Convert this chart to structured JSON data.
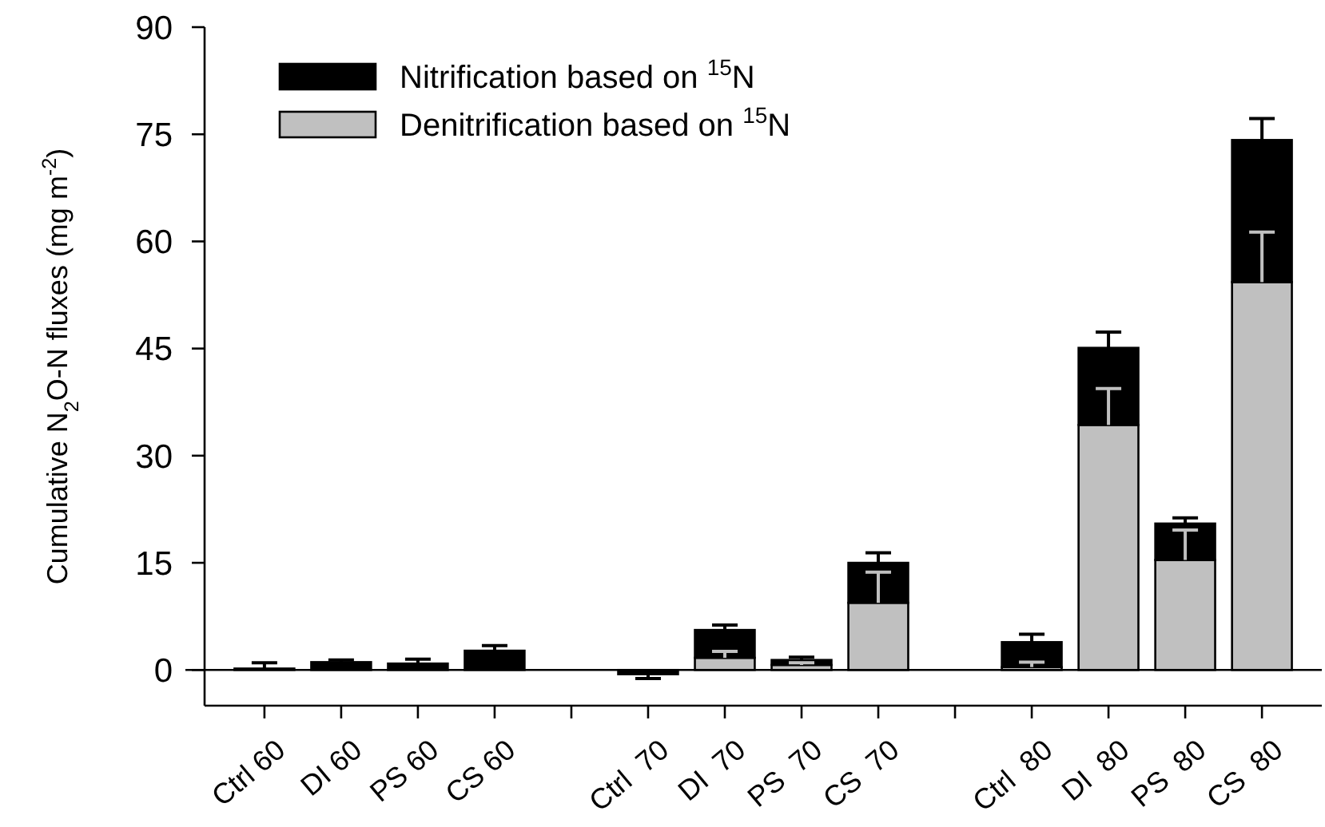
{
  "chart_data": {
    "type": "bar",
    "stacked": true,
    "ylabel": "Cumulative N$_{2}$O-N fluxes (mg m$^{-2}$)",
    "categories": [
      "Ctrl 60",
      "DI 60",
      "PS 60",
      "CS 60",
      null,
      "Ctrl  70",
      "DI  70",
      "PS  70",
      "CS  70",
      null,
      "Ctrl  80",
      "DI  80",
      "PS  80",
      "CS  80"
    ],
    "series": [
      {
        "name": "Denitrification based on $^{15}$N",
        "color": "#c0c0c0",
        "values": [
          null,
          null,
          null,
          null,
          null,
          null,
          1.7,
          0.7,
          9.4,
          null,
          0.4,
          34.3,
          15.4,
          54.3
        ],
        "errors": [
          null,
          null,
          null,
          null,
          null,
          null,
          0.9,
          0.3,
          4.3,
          null,
          0.7,
          5.1,
          4.2,
          7.0
        ]
      },
      {
        "name": "Nitrification based on $^{15}$N",
        "color": "#000000",
        "values": [
          0.2,
          1.1,
          0.9,
          2.7,
          null,
          -0.6,
          3.9,
          0.7,
          5.6,
          null,
          3.5,
          10.8,
          5.1,
          19.9
        ],
        "errors": [
          0.8,
          0.3,
          0.6,
          0.7,
          null,
          0.6,
          0.7,
          0.4,
          1.4,
          null,
          1.1,
          2.2,
          0.8,
          3.0
        ]
      }
    ],
    "ylim": [
      -5,
      90
    ],
    "yticks": [
      0,
      15,
      30,
      45,
      60,
      75,
      90
    ],
    "ref_lines": [
      {
        "axis": "y",
        "value": 0
      }
    ],
    "legend": "top left"
  }
}
